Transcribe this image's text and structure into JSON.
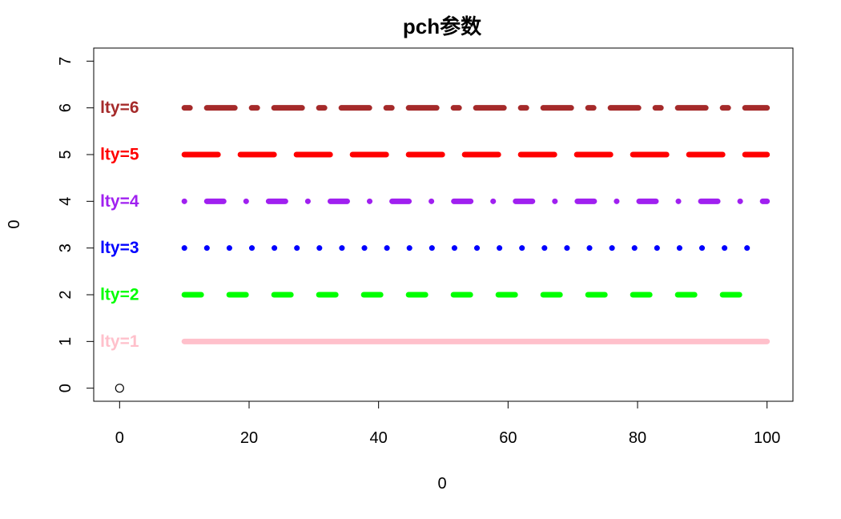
{
  "chart_data": {
    "type": "line",
    "title": "pch参数",
    "xlabel": "0",
    "ylabel": "0",
    "xlim": [
      -4,
      104
    ],
    "ylim": [
      -0.28,
      7.28
    ],
    "x_ticks": [
      "0",
      "20",
      "40",
      "60",
      "80",
      "100"
    ],
    "x_tick_values": [
      0,
      20,
      40,
      60,
      80,
      100
    ],
    "y_ticks": [
      "0",
      "1",
      "2",
      "3",
      "4",
      "5",
      "6",
      "7"
    ],
    "y_tick_values": [
      0,
      1,
      2,
      3,
      4,
      5,
      6,
      7
    ],
    "points": [
      {
        "x": 0,
        "y": 0,
        "marker": "open-circle"
      }
    ],
    "series": [
      {
        "label": "lty=1",
        "lty": 1,
        "color": "#FFC0CB",
        "x_range": [
          10,
          100
        ],
        "y": 1
      },
      {
        "label": "lty=2",
        "lty": 2,
        "color": "#00FF00",
        "x_range": [
          10,
          100
        ],
        "y": 2
      },
      {
        "label": "lty=3",
        "lty": 3,
        "color": "#0000FF",
        "x_range": [
          10,
          100
        ],
        "y": 3
      },
      {
        "label": "lty=4",
        "lty": 4,
        "color": "#A020F0",
        "x_range": [
          10,
          100
        ],
        "y": 4
      },
      {
        "label": "lty=5",
        "lty": 5,
        "color": "#FF0000",
        "x_range": [
          10,
          100
        ],
        "y": 5
      },
      {
        "label": "lty=6",
        "lty": 6,
        "color": "#A52A2A",
        "x_range": [
          10,
          100
        ],
        "y": 6
      }
    ]
  }
}
